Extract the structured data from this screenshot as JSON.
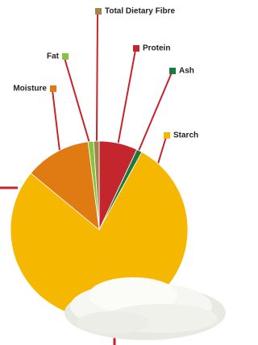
{
  "chart_data": {
    "type": "pie",
    "categories": [
      "Protein",
      "Ash",
      "Starch",
      "Moisture",
      "Fat",
      "Total Dietary Fibre"
    ],
    "values": [
      7,
      1,
      78,
      12,
      1,
      1
    ],
    "colors": [
      "#c4262e",
      "#1d7a3e",
      "#f5b700",
      "#e07a12",
      "#86c440",
      "#a3844a"
    ],
    "leader_color": "#c8232b"
  }
}
